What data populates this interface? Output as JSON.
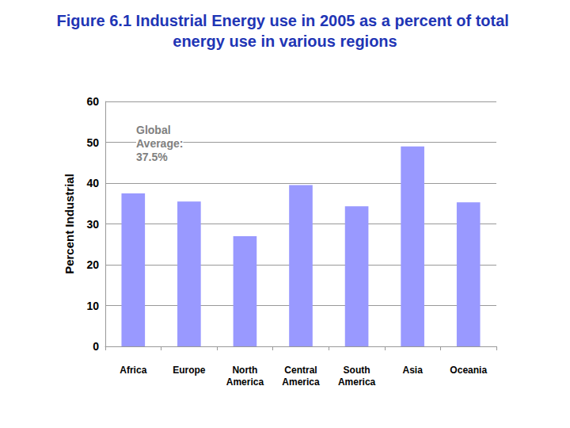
{
  "chart_data": {
    "type": "bar",
    "title": "Figure 6.1 Industrial Energy use in 2005 as a percent of total energy use in various regions",
    "ylabel": "Percent Industrial",
    "annotations": [
      "Global Average: 37.5%"
    ],
    "categories": [
      "Africa",
      "Europe",
      "North America",
      "Central America",
      "South America",
      "Asia",
      "Oceania"
    ],
    "values": [
      37.5,
      35.5,
      27,
      39.5,
      34.3,
      49,
      35.3
    ],
    "color": "#9999ff",
    "ylim": [
      0,
      60
    ],
    "yticks": [
      0,
      10,
      20,
      30,
      40,
      50,
      60
    ],
    "grid": true
  }
}
